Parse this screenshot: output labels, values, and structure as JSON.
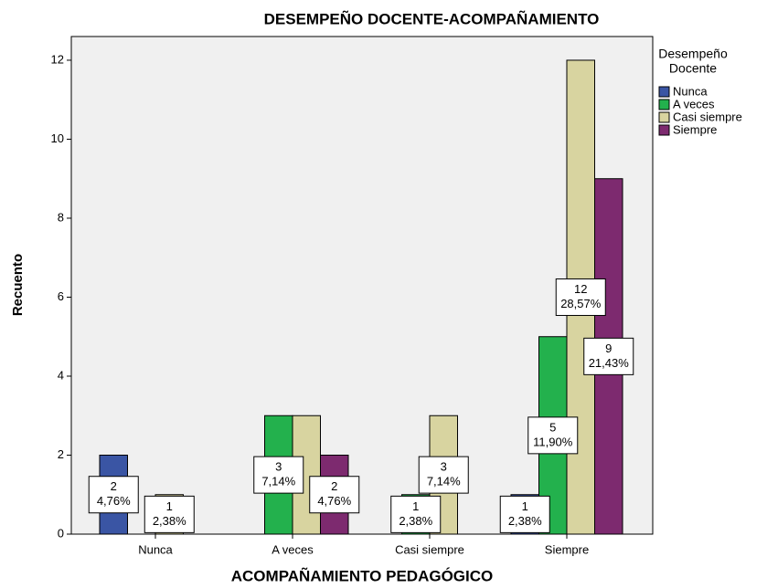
{
  "chart_data": {
    "type": "bar",
    "title": "DESEMPEÑO DOCENTE-ACOMPAÑAMIENTO",
    "x_label": "ACOMPAÑAMIENTO PEDAGÓGICO",
    "y_label": "Recuento",
    "legend_title": [
      "Desempeño",
      "Docente"
    ],
    "legend_position": "right",
    "categories": [
      "Nunca",
      "A veces",
      "Casi siempre",
      "Siempre"
    ],
    "series": [
      {
        "name": "Nunca",
        "color": "#3a55a4",
        "values": [
          2,
          null,
          null,
          1
        ],
        "percent_labels": [
          "4,76%",
          null,
          null,
          "2,38%"
        ]
      },
      {
        "name": "A veces",
        "color": "#23b14d",
        "values": [
          null,
          3,
          1,
          5
        ],
        "percent_labels": [
          null,
          "7,14%",
          "2,38%",
          "11,90%"
        ]
      },
      {
        "name": "Casi siempre",
        "color": "#d8d4a0",
        "values": [
          1,
          3,
          3,
          12
        ],
        "percent_labels": [
          "2,38%",
          null,
          "7,14%",
          "28,57%"
        ]
      },
      {
        "name": "Siempre",
        "color": "#7d2a6f",
        "values": [
          null,
          2,
          null,
          9
        ],
        "percent_labels": [
          null,
          "4,76%",
          null,
          "21,43%"
        ]
      }
    ],
    "ylim": [
      0,
      12.6
    ],
    "yticks": [
      0,
      2,
      4,
      6,
      8,
      10,
      12
    ],
    "grid": false
  }
}
